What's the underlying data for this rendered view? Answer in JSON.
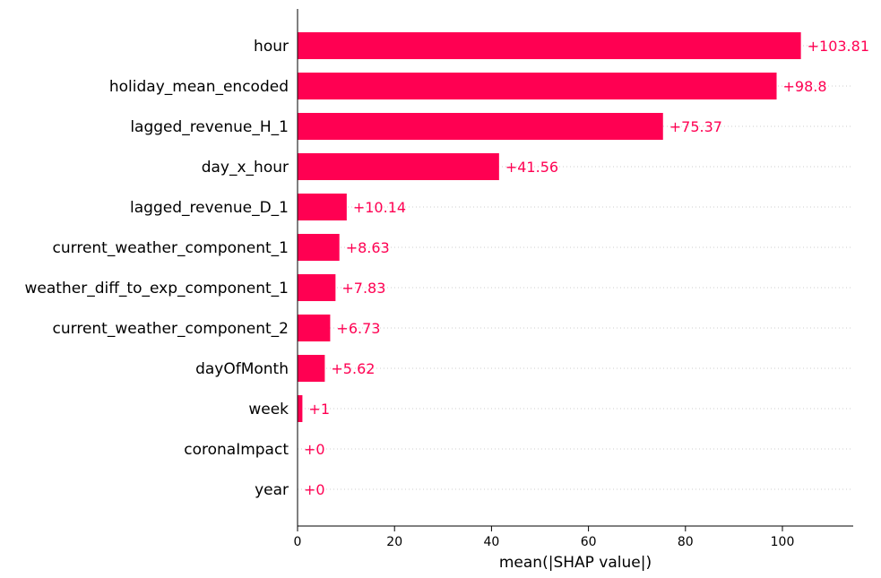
{
  "chart_data": {
    "type": "bar",
    "orientation": "horizontal",
    "categories": [
      "hour",
      "holiday_mean_encoded",
      "lagged_revenue_H_1",
      "day_x_hour",
      "lagged_revenue_D_1",
      "current_weather_component_1",
      "weather_diff_to_exp_component_1",
      "current_weather_component_2",
      "dayOfMonth",
      "week",
      "coronaImpact",
      "year"
    ],
    "values": [
      103.81,
      98.8,
      75.37,
      41.56,
      10.14,
      8.63,
      7.83,
      6.73,
      5.62,
      1,
      0,
      0
    ],
    "value_labels": [
      "+103.81",
      "+98.8",
      "+75.37",
      "+41.56",
      "+10.14",
      "+8.63",
      "+7.83",
      "+6.73",
      "+5.62",
      "+1",
      "+0",
      "+0"
    ],
    "xlabel": "mean(|SHAP value|)",
    "ylabel": "",
    "xlim": [
      0,
      114.6
    ],
    "xticks": [
      0,
      20,
      40,
      60,
      80,
      100
    ],
    "grid": "dotted horizontal guide lines per row",
    "bar_color": "#ff0052",
    "label_color": "#ff0052",
    "legend": "none"
  }
}
